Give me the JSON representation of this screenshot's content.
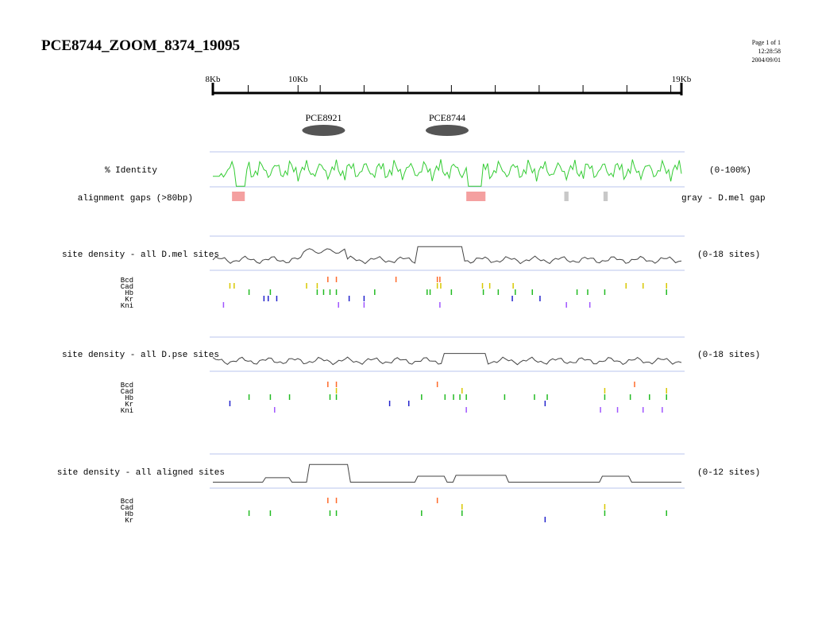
{
  "header": {
    "title": "PCE8744_ZOOM_8374_19095",
    "page": "Page 1 of 1",
    "time": "12:28:58",
    "date": "2004/09/01"
  },
  "ruler": {
    "start_kb": 8,
    "end_kb": 19,
    "labels": [
      {
        "text": "8Kb",
        "kb": 8
      },
      {
        "text": "10Kb",
        "kb": 10
      },
      {
        "text": "19Kb",
        "kb": 19
      }
    ],
    "minor_ticks_kb": [
      8.83,
      10,
      10.52,
      11.55,
      12.58,
      13.6,
      14.63,
      15.66,
      16.69,
      17.72,
      18.75,
      19
    ]
  },
  "features": [
    {
      "label": "PCE8921",
      "kb": 10.6
    },
    {
      "label": "PCE8744",
      "kb": 13.5
    }
  ],
  "identity": {
    "label": "% Identity",
    "range": "(0-100%)",
    "color": "#33cc33"
  },
  "gaps": {
    "label": "alignment gaps (>80bp)",
    "note": "gray - D.mel gap",
    "items": [
      {
        "start_kb": 8.45,
        "end_kb": 8.75,
        "kind": "pink"
      },
      {
        "start_kb": 13.95,
        "end_kb": 14.4,
        "kind": "pink"
      },
      {
        "start_kb": 16.25,
        "end_kb": 16.35,
        "kind": "gray"
      },
      {
        "start_kb": 17.17,
        "end_kb": 17.27,
        "kind": "gray"
      }
    ],
    "colors": {
      "pink": "#f4a0a0",
      "gray": "#c8c8c8"
    }
  },
  "tracks": [
    {
      "id": "dmel",
      "label": "site density - all D.mel sites",
      "range": "(0-18 sites)",
      "factors": [
        {
          "name": "Bcd",
          "color": "#ff6a2a",
          "sites_kb": [
            10.7,
            10.9,
            12.3,
            13.27,
            13.33
          ]
        },
        {
          "name": "Cad",
          "color": "#d8c800",
          "sites_kb": [
            8.4,
            8.5,
            10.2,
            10.45,
            13.27,
            13.35,
            14.33,
            14.5,
            15.05,
            17.7,
            18.1,
            18.65
          ]
        },
        {
          "name": "Hb",
          "color": "#22bb22",
          "sites_kb": [
            8.85,
            9.35,
            10.45,
            10.6,
            10.75,
            10.9,
            11.8,
            13.03,
            13.1,
            13.6,
            14.35,
            14.7,
            15.1,
            15.5,
            16.55,
            16.8,
            17.2,
            18.65
          ]
        },
        {
          "name": "Kr",
          "color": "#2222cc",
          "sites_kb": [
            9.2,
            9.3,
            9.5,
            11.2,
            11.55,
            15.03,
            15.68
          ]
        },
        {
          "name": "Kni",
          "color": "#a055ff",
          "sites_kb": [
            8.25,
            10.95,
            11.55,
            13.33,
            16.3,
            16.85
          ]
        }
      ]
    },
    {
      "id": "dpse",
      "label": "site density - all D.pse sites",
      "range": "(0-18 sites)",
      "factors": [
        {
          "name": "Bcd",
          "color": "#ff6a2a",
          "sites_kb": [
            10.7,
            10.9,
            13.27,
            17.9
          ]
        },
        {
          "name": "Cad",
          "color": "#d8c800",
          "sites_kb": [
            10.9,
            13.85,
            17.2,
            18.65
          ]
        },
        {
          "name": "Hb",
          "color": "#22bb22",
          "sites_kb": [
            8.85,
            9.35,
            9.8,
            10.75,
            10.9,
            12.9,
            13.45,
            13.65,
            13.8,
            13.95,
            14.85,
            15.55,
            15.85,
            17.2,
            17.8,
            18.25,
            18.65
          ]
        },
        {
          "name": "Kr",
          "color": "#2222cc",
          "sites_kb": [
            8.4,
            12.15,
            12.6,
            15.8
          ]
        },
        {
          "name": "Kni",
          "color": "#a055ff",
          "sites_kb": [
            9.45,
            13.95,
            17.1,
            17.5,
            18.1,
            18.55
          ]
        }
      ]
    },
    {
      "id": "aligned",
      "label": "site density - all aligned sites",
      "range": "(0-12 sites)",
      "factors": [
        {
          "name": "Bcd",
          "color": "#ff6a2a",
          "sites_kb": [
            10.7,
            10.9,
            13.27
          ]
        },
        {
          "name": "Cad",
          "color": "#d8c800",
          "sites_kb": [
            13.85,
            17.2
          ]
        },
        {
          "name": "Hb",
          "color": "#22bb22",
          "sites_kb": [
            8.85,
            9.35,
            10.75,
            10.9,
            12.9,
            13.85,
            17.2,
            18.65
          ]
        },
        {
          "name": "Kr",
          "color": "#2222cc",
          "sites_kb": [
            15.8
          ]
        }
      ]
    }
  ]
}
